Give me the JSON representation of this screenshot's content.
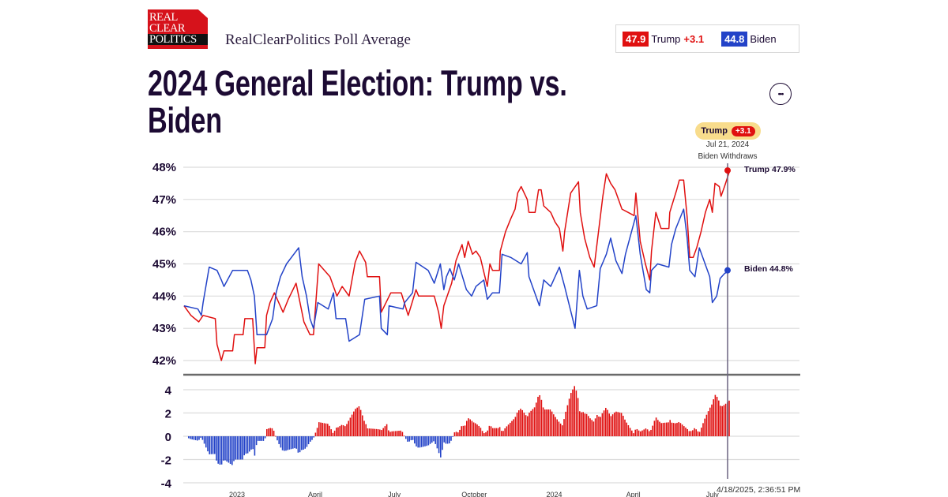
{
  "header": {
    "logo_text": [
      "REAL",
      "CLEAR",
      "POLITICS"
    ],
    "subtitle": "RealClearPolitics Poll Average",
    "legend": [
      {
        "value": "47.9",
        "name": "Trump",
        "spread": "+3.1",
        "color": "#e01010"
      },
      {
        "value": "44.8",
        "name": "Biden",
        "spread": "",
        "color": "#2343c8"
      }
    ],
    "menu_icon": "more-horizontal-icon",
    "menu_label": "•••"
  },
  "title": "2024 General Election: Trump vs. Biden",
  "annotation": {
    "leader": "Trump",
    "spread": "+3.1",
    "date": "Jul 21, 2024",
    "event": "Biden Withdraws",
    "trump_end": "Trump 47.9%",
    "biden_end": "Biden 44.8%"
  },
  "timestamp": "4/18/2025, 2:36:51 PM",
  "chart_data": [
    {
      "type": "line",
      "ylim": [
        42,
        48
      ],
      "yticks": [
        "48%",
        "47%",
        "46%",
        "45%",
        "44%",
        "43%",
        "42%"
      ],
      "ytick_values": [
        48,
        47,
        46,
        45,
        44,
        43,
        42
      ],
      "grid": true,
      "series": [
        {
          "name": "Trump",
          "color": "#e01010",
          "points": [
            [
              "2022-11-01",
              43.7
            ],
            [
              "2022-11-09",
              43.4
            ],
            [
              "2022-11-18",
              43.2
            ],
            [
              "2022-11-23",
              43.4
            ],
            [
              "2022-12-07",
              43.3
            ],
            [
              "2022-12-09",
              42.5
            ],
            [
              "2022-12-14",
              42.0
            ],
            [
              "2022-12-17",
              42.3
            ],
            [
              "2022-12-27",
              42.3
            ],
            [
              "2022-12-29",
              42.8
            ],
            [
              "2023-01-08",
              42.8
            ],
            [
              "2023-01-10",
              43.3
            ],
            [
              "2023-01-19",
              43.3
            ],
            [
              "2023-01-22",
              41.9
            ],
            [
              "2023-01-24",
              42.4
            ],
            [
              "2023-02-02",
              42.4
            ],
            [
              "2023-02-04",
              43.4
            ],
            [
              "2023-02-08",
              43.8
            ],
            [
              "2023-02-13",
              44.1
            ],
            [
              "2023-02-23",
              43.5
            ],
            [
              "2023-03-01",
              43.9
            ],
            [
              "2023-03-10",
              44.4
            ],
            [
              "2023-03-19",
              43.2
            ],
            [
              "2023-03-26",
              42.8
            ],
            [
              "2023-03-30",
              42.8
            ],
            [
              "2023-04-05",
              45.0
            ],
            [
              "2023-04-18",
              44.6
            ],
            [
              "2023-04-26",
              44.0
            ],
            [
              "2023-05-02",
              44.3
            ],
            [
              "2023-05-10",
              44.0
            ],
            [
              "2023-05-17",
              45.05
            ],
            [
              "2023-05-22",
              45.4
            ],
            [
              "2023-05-29",
              45.05
            ],
            [
              "2023-05-31",
              44.6
            ],
            [
              "2023-06-14",
              44.6
            ],
            [
              "2023-06-16",
              43.5
            ],
            [
              "2023-06-27",
              44.1
            ],
            [
              "2023-07-09",
              44.1
            ],
            [
              "2023-07-17",
              43.4
            ],
            [
              "2023-07-26",
              44.2
            ],
            [
              "2023-07-29",
              44.0
            ],
            [
              "2023-08-16",
              44.0
            ],
            [
              "2023-08-21",
              43.5
            ],
            [
              "2023-08-24",
              43.0
            ],
            [
              "2023-08-27",
              43.7
            ],
            [
              "2023-09-05",
              44.4
            ],
            [
              "2023-09-10",
              45.1
            ],
            [
              "2023-09-17",
              45.6
            ],
            [
              "2023-09-20",
              45.2
            ],
            [
              "2023-09-24",
              45.7
            ],
            [
              "2023-09-29",
              45.3
            ],
            [
              "2023-10-03",
              45.4
            ],
            [
              "2023-10-08",
              45.2
            ],
            [
              "2023-10-16",
              44.3
            ],
            [
              "2023-10-19",
              45.0
            ],
            [
              "2023-10-22",
              44.8
            ],
            [
              "2023-10-30",
              44.8
            ],
            [
              "2023-10-31",
              45.4
            ],
            [
              "2023-11-06",
              46.0
            ],
            [
              "2023-11-12",
              46.4
            ],
            [
              "2023-11-17",
              46.7
            ],
            [
              "2023-11-20",
              47.2
            ],
            [
              "2023-11-24",
              47.4
            ],
            [
              "2023-12-01",
              47.0
            ],
            [
              "2023-12-03",
              46.6
            ],
            [
              "2023-12-10",
              46.6
            ],
            [
              "2023-12-14",
              47.3
            ],
            [
              "2023-12-17",
              47.3
            ],
            [
              "2023-12-20",
              46.8
            ],
            [
              "2023-12-28",
              46.6
            ],
            [
              "2024-01-02",
              46.3
            ],
            [
              "2024-01-07",
              46.1
            ],
            [
              "2024-01-11",
              45.4
            ],
            [
              "2024-01-13",
              46.0
            ],
            [
              "2024-01-20",
              47.2
            ],
            [
              "2024-01-29",
              47.55
            ],
            [
              "2024-01-31",
              46.6
            ],
            [
              "2024-02-05",
              45.8
            ],
            [
              "2024-02-11",
              45.2
            ],
            [
              "2024-02-16",
              44.9
            ],
            [
              "2024-02-21",
              46.0
            ],
            [
              "2024-02-26",
              47.1
            ],
            [
              "2024-03-01",
              47.8
            ],
            [
              "2024-03-06",
              47.5
            ],
            [
              "2024-03-11",
              47.3
            ],
            [
              "2024-03-19",
              46.7
            ],
            [
              "2024-03-26",
              46.6
            ],
            [
              "2024-04-02",
              46.5
            ],
            [
              "2024-04-04",
              47.2
            ],
            [
              "2024-04-09",
              45.7
            ],
            [
              "2024-04-15",
              45.0
            ],
            [
              "2024-04-20",
              44.5
            ],
            [
              "2024-04-22",
              45.4
            ],
            [
              "2024-04-27",
              46.6
            ],
            [
              "2024-05-03",
              46.1
            ],
            [
              "2024-05-12",
              46.1
            ],
            [
              "2024-05-13",
              46.6
            ],
            [
              "2024-05-21",
              47.3
            ],
            [
              "2024-05-24",
              47.6
            ],
            [
              "2024-05-29",
              47.6
            ],
            [
              "2024-06-02",
              46.45
            ],
            [
              "2024-06-05",
              45.2
            ],
            [
              "2024-06-09",
              45.2
            ],
            [
              "2024-06-13",
              45.5
            ],
            [
              "2024-06-18",
              46.0
            ],
            [
              "2024-06-23",
              46.6
            ],
            [
              "2024-06-28",
              47.0
            ],
            [
              "2024-07-01",
              46.6
            ],
            [
              "2024-07-04",
              47.5
            ],
            [
              "2024-07-09",
              47.4
            ],
            [
              "2024-07-11",
              47.1
            ],
            [
              "2024-07-15",
              47.4
            ],
            [
              "2024-07-21",
              47.9
            ]
          ]
        },
        {
          "name": "Biden",
          "color": "#2343c8",
          "points": [
            [
              "2022-11-01",
              43.7
            ],
            [
              "2022-11-17",
              43.6
            ],
            [
              "2022-11-21",
              43.4
            ],
            [
              "2022-11-23",
              43.8
            ],
            [
              "2022-11-30",
              44.9
            ],
            [
              "2022-12-09",
              44.8
            ],
            [
              "2022-12-14",
              44.5
            ],
            [
              "2022-12-17",
              44.3
            ],
            [
              "2022-12-27",
              44.8
            ],
            [
              "2023-01-13",
              44.8
            ],
            [
              "2023-01-17",
              44.5
            ],
            [
              "2023-01-21",
              44.0
            ],
            [
              "2023-01-24",
              42.8
            ],
            [
              "2023-02-04",
              42.8
            ],
            [
              "2023-02-11",
              43.3
            ],
            [
              "2023-02-15",
              44.1
            ],
            [
              "2023-02-20",
              44.6
            ],
            [
              "2023-02-27",
              45.0
            ],
            [
              "2023-03-13",
              45.5
            ],
            [
              "2023-03-17",
              44.6
            ],
            [
              "2023-03-22",
              44.0
            ],
            [
              "2023-03-26",
              43.3
            ],
            [
              "2023-03-30",
              43.0
            ],
            [
              "2023-04-04",
              43.8
            ],
            [
              "2023-04-16",
              43.6
            ],
            [
              "2023-04-22",
              44.1
            ],
            [
              "2023-04-25",
              43.3
            ],
            [
              "2023-05-06",
              43.3
            ],
            [
              "2023-05-10",
              42.6
            ],
            [
              "2023-05-22",
              42.8
            ],
            [
              "2023-05-28",
              43.9
            ],
            [
              "2023-06-14",
              44.0
            ],
            [
              "2023-06-16",
              43.0
            ],
            [
              "2023-06-23",
              42.8
            ],
            [
              "2023-06-25",
              43.7
            ],
            [
              "2023-07-11",
              43.6
            ],
            [
              "2023-07-13",
              43.8
            ],
            [
              "2023-07-22",
              44.1
            ],
            [
              "2023-07-26",
              45.05
            ],
            [
              "2023-08-09",
              44.8
            ],
            [
              "2023-08-16",
              44.4
            ],
            [
              "2023-08-23",
              45.0
            ],
            [
              "2023-08-27",
              44.2
            ],
            [
              "2023-08-30",
              44.6
            ],
            [
              "2023-09-03",
              44.85
            ],
            [
              "2023-09-08",
              44.5
            ],
            [
              "2023-09-13",
              45.0
            ],
            [
              "2023-09-22",
              44.2
            ],
            [
              "2023-09-28",
              44.0
            ],
            [
              "2023-10-03",
              44.3
            ],
            [
              "2023-10-12",
              44.5
            ],
            [
              "2023-10-16",
              43.9
            ],
            [
              "2023-10-22",
              44.1
            ],
            [
              "2023-10-30",
              44.1
            ],
            [
              "2023-11-02",
              45.3
            ],
            [
              "2023-11-12",
              45.2
            ],
            [
              "2023-11-24",
              45.0
            ],
            [
              "2023-12-01",
              45.35
            ],
            [
              "2023-12-03",
              44.6
            ],
            [
              "2023-12-15",
              43.7
            ],
            [
              "2023-12-20",
              44.5
            ],
            [
              "2023-12-28",
              44.3
            ],
            [
              "2024-01-07",
              44.9
            ],
            [
              "2024-01-13",
              44.3
            ],
            [
              "2024-01-25",
              43.0
            ],
            [
              "2024-01-30",
              44.8
            ],
            [
              "2024-02-03",
              44.0
            ],
            [
              "2024-02-08",
              43.6
            ],
            [
              "2024-02-19",
              43.7
            ],
            [
              "2024-02-23",
              44.85
            ],
            [
              "2024-03-01",
              45.3
            ],
            [
              "2024-03-06",
              45.8
            ],
            [
              "2024-03-12",
              45.1
            ],
            [
              "2024-03-19",
              44.7
            ],
            [
              "2024-03-23",
              45.3
            ],
            [
              "2024-04-04",
              46.5
            ],
            [
              "2024-04-09",
              45.3
            ],
            [
              "2024-04-16",
              44.2
            ],
            [
              "2024-04-20",
              44.1
            ],
            [
              "2024-04-22",
              44.8
            ],
            [
              "2024-04-29",
              45.0
            ],
            [
              "2024-05-12",
              44.9
            ],
            [
              "2024-05-15",
              45.6
            ],
            [
              "2024-05-20",
              46.1
            ],
            [
              "2024-05-29",
              46.7
            ],
            [
              "2024-06-02",
              45.8
            ],
            [
              "2024-06-05",
              44.8
            ],
            [
              "2024-06-11",
              44.6
            ],
            [
              "2024-06-16",
              45.5
            ],
            [
              "2024-06-28",
              44.6
            ],
            [
              "2024-07-01",
              43.8
            ],
            [
              "2024-07-06",
              44.0
            ],
            [
              "2024-07-10",
              44.55
            ],
            [
              "2024-07-15",
              44.7
            ],
            [
              "2024-07-21",
              44.8
            ]
          ]
        }
      ]
    },
    {
      "type": "bar",
      "description_of_values": "Trump minus Biden spread",
      "ylim": [
        -4,
        4
      ],
      "yticks": [
        "4",
        "2",
        "0",
        "-2",
        "-4"
      ],
      "ytick_values": [
        4,
        2,
        0,
        -2,
        -4
      ],
      "grid": true,
      "positive_color": "#e01010",
      "negative_color": "#2343c8",
      "xticks": [
        {
          "label": "2023",
          "date": "2023-01-01"
        },
        {
          "label": "April",
          "date": "2023-04-01"
        },
        {
          "label": "July",
          "date": "2023-07-01"
        },
        {
          "label": "October",
          "date": "2023-10-01"
        },
        {
          "label": "2024",
          "date": "2024-01-01"
        },
        {
          "label": "April",
          "date": "2024-04-01"
        },
        {
          "label": "July",
          "date": "2024-07-01"
        }
      ]
    }
  ]
}
